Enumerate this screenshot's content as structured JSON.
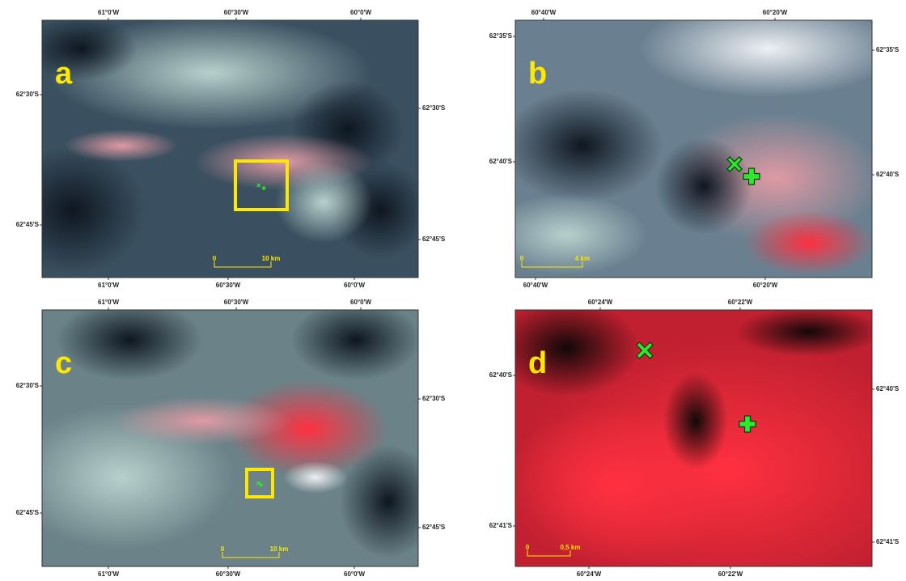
{
  "panels": [
    {
      "label": "a",
      "top_ticks": [
        "61°0'W",
        "60°30'W",
        "60°0'W"
      ],
      "bottom_ticks": [
        "61°0'W",
        "60°30'W",
        "60°0'W"
      ],
      "left_ticks": [
        "62°30'S",
        "62°45'S"
      ],
      "right_ticks": [
        "62°30'S",
        "62°45'S"
      ],
      "scale": [
        "0",
        "10 km"
      ]
    },
    {
      "label": "b",
      "top_ticks": [
        "60°40'W",
        "60°20'W"
      ],
      "bottom_ticks": [
        "60°40'W",
        "60°20'W"
      ],
      "left_ticks": [
        "62°35'S",
        "62°40'S"
      ],
      "right_ticks": [
        "62°35'S",
        "62°40'S"
      ],
      "scale": [
        "0",
        "4 km"
      ]
    },
    {
      "label": "c",
      "top_ticks": [
        "61°0'W",
        "60°30'W",
        "60°0'W"
      ],
      "bottom_ticks": [
        "61°0'W",
        "60°30'W",
        "60°0'W"
      ],
      "left_ticks": [
        "62°30'S",
        "62°45'S"
      ],
      "right_ticks": [
        "62°30'S",
        "62°45'S"
      ],
      "scale": [
        "0",
        "10 km"
      ]
    },
    {
      "label": "d",
      "top_ticks": [
        "60°24'W",
        "60°22'W"
      ],
      "bottom_ticks": [
        "60°24'W",
        "60°22'W"
      ],
      "left_ticks": [
        "62°40'S",
        "62°41'S"
      ],
      "right_ticks": [
        "62°40'S",
        "62°41'S"
      ],
      "scale": [
        "0",
        "0,5 km"
      ]
    }
  ]
}
